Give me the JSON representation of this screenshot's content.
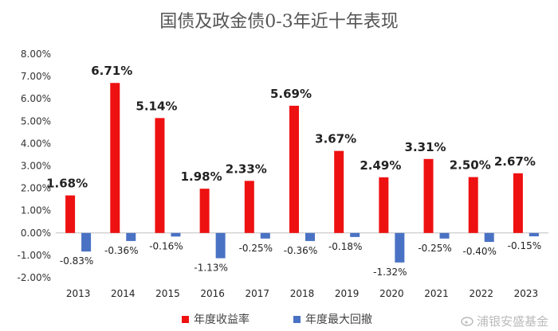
{
  "chart_data": {
    "type": "bar",
    "title": "国债及政金债0-3年近十年表现",
    "categories": [
      "2013",
      "2014",
      "2015",
      "2016",
      "2017",
      "2018",
      "2019",
      "2020",
      "2021",
      "2022",
      "2023"
    ],
    "series": [
      {
        "name": "年度收益率",
        "color": "#ee1111",
        "values": [
          1.68,
          6.71,
          5.14,
          1.98,
          2.33,
          5.69,
          3.67,
          2.49,
          3.31,
          2.5,
          2.67
        ],
        "labels": [
          "1.68%",
          "6.71%",
          "5.14%",
          "1.98%",
          "2.33%",
          "5.69%",
          "3.67%",
          "2.49%",
          "3.31%",
          "2.50%",
          "2.67%"
        ]
      },
      {
        "name": "年度最大回撤",
        "color": "#4a72c4",
        "values": [
          -0.83,
          -0.36,
          -0.16,
          -1.13,
          -0.25,
          -0.36,
          -0.18,
          -1.32,
          -0.25,
          -0.4,
          -0.15
        ],
        "labels": [
          "-0.83%",
          "-0.36%",
          "-0.16%",
          "-1.13%",
          "-0.25%",
          "-0.36%",
          "-0.18%",
          "-1.32%",
          "-0.25%",
          "-0.40%",
          "-0.15%"
        ]
      }
    ],
    "ylim": [
      -2,
      8
    ],
    "yticks": [
      8,
      7,
      6,
      5,
      4,
      3,
      2,
      1,
      0,
      -1,
      -2
    ],
    "ytick_labels": [
      "8.00%",
      "7.00%",
      "6.00%",
      "5.00%",
      "4.00%",
      "3.00%",
      "2.00%",
      "1.00%",
      "0.00%",
      "-1.00%",
      "-2.00%"
    ],
    "grid": false,
    "legend_position": "bottom-center"
  },
  "watermark": "浦银安盛基金"
}
